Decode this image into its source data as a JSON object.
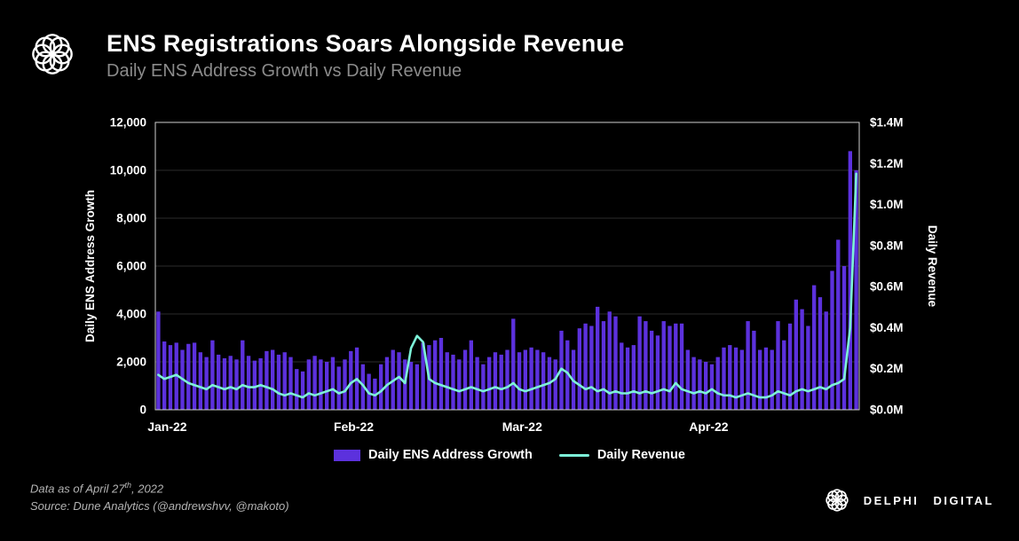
{
  "chart_data": {
    "type": "bar",
    "title": "ENS Registrations Soars Alongside Revenue",
    "subtitle": "Daily ENS Address Growth vs Daily Revenue",
    "x_dates": {
      "start": "2022-01-01",
      "end": "2022-04-27",
      "freq": "daily"
    },
    "x_ticks": [
      {
        "label": "Jan-22",
        "index": 0
      },
      {
        "label": "Feb-22",
        "index": 31
      },
      {
        "label": "Mar-22",
        "index": 59
      },
      {
        "label": "Apr-22",
        "index": 90
      }
    ],
    "left_axis": {
      "label": "Daily ENS Address Growth",
      "min": 0,
      "max": 12000,
      "step": 2000
    },
    "right_axis": {
      "label": "Daily Revenue",
      "min": 0,
      "max": 1.4,
      "step": 0.2,
      "format": "$X.XM"
    },
    "grid": true,
    "legend_position": "bottom",
    "series": [
      {
        "name": "Daily ENS Address Growth",
        "kind": "bar",
        "axis": "left",
        "color": "#5c31dd",
        "values": [
          4100,
          2850,
          2700,
          2800,
          2500,
          2750,
          2800,
          2400,
          2200,
          2900,
          2300,
          2150,
          2250,
          2100,
          2900,
          2250,
          2050,
          2150,
          2450,
          2500,
          2300,
          2400,
          2200,
          1700,
          1600,
          2100,
          2250,
          2100,
          2000,
          2200,
          1800,
          2100,
          2450,
          2600,
          1900,
          1500,
          1300,
          1900,
          2200,
          2500,
          2400,
          2100,
          2000,
          1900,
          2800,
          2700,
          2900,
          3000,
          2400,
          2300,
          2100,
          2500,
          2900,
          2200,
          1900,
          2200,
          2400,
          2300,
          2500,
          3800,
          2400,
          2500,
          2600,
          2500,
          2400,
          2200,
          2100,
          3300,
          2900,
          2500,
          3400,
          3600,
          3500,
          4300,
          3700,
          4100,
          3900,
          2800,
          2600,
          2700,
          3900,
          3700,
          3300,
          3100,
          3700,
          3500,
          3600,
          3600,
          2500,
          2200,
          2100,
          2000,
          1900,
          2200,
          2600,
          2700,
          2600,
          2500,
          3700,
          3300,
          2500,
          2600,
          2500,
          3700,
          2900,
          3600,
          4600,
          4200,
          3500,
          5200,
          4700,
          4100,
          5800,
          7100,
          6000,
          10800,
          10000
        ]
      },
      {
        "name": "Daily Revenue",
        "kind": "line",
        "axis": "right",
        "color": "#7df2d8",
        "values_usd_m": [
          0.17,
          0.15,
          0.16,
          0.17,
          0.15,
          0.13,
          0.12,
          0.11,
          0.1,
          0.12,
          0.11,
          0.1,
          0.11,
          0.1,
          0.12,
          0.11,
          0.11,
          0.12,
          0.11,
          0.1,
          0.08,
          0.07,
          0.08,
          0.07,
          0.06,
          0.08,
          0.07,
          0.08,
          0.09,
          0.1,
          0.08,
          0.09,
          0.13,
          0.15,
          0.12,
          0.08,
          0.07,
          0.09,
          0.12,
          0.14,
          0.16,
          0.13,
          0.3,
          0.36,
          0.33,
          0.15,
          0.13,
          0.12,
          0.11,
          0.1,
          0.09,
          0.1,
          0.11,
          0.1,
          0.09,
          0.1,
          0.11,
          0.1,
          0.11,
          0.13,
          0.1,
          0.09,
          0.1,
          0.11,
          0.12,
          0.13,
          0.15,
          0.2,
          0.18,
          0.14,
          0.12,
          0.1,
          0.11,
          0.09,
          0.1,
          0.08,
          0.09,
          0.08,
          0.08,
          0.09,
          0.08,
          0.09,
          0.08,
          0.09,
          0.1,
          0.09,
          0.13,
          0.1,
          0.09,
          0.08,
          0.09,
          0.08,
          0.1,
          0.08,
          0.07,
          0.07,
          0.06,
          0.07,
          0.08,
          0.07,
          0.06,
          0.06,
          0.07,
          0.09,
          0.08,
          0.07,
          0.09,
          0.1,
          0.09,
          0.1,
          0.11,
          0.1,
          0.12,
          0.13,
          0.15,
          0.4,
          1.15
        ]
      }
    ]
  },
  "footer": {
    "note_parts": [
      "Data as of April 27",
      "th",
      ", 2022"
    ],
    "source": "Source:  Dune Analytics (@andrewshvv,  @makoto)",
    "brand": "DELPHI DIGITAL"
  }
}
